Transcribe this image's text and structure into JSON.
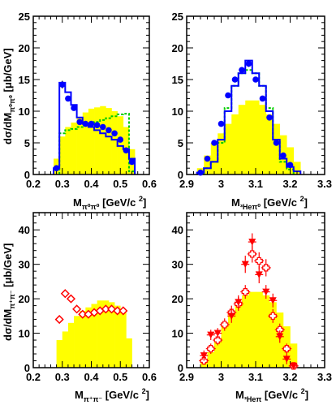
{
  "chart_data": [
    {
      "id": "tl",
      "type": "bar",
      "ylabel": "dσ/dM_{π⁰π⁰} [μb/GeV]",
      "xlabel": "M_{π⁰π⁰} [GeV/c²]",
      "xlim": [
        0.2,
        0.6
      ],
      "ylim": [
        0,
        25
      ],
      "xticks": [
        0.2,
        0.3,
        0.4,
        0.5,
        0.6
      ],
      "yticks": [
        0,
        5,
        10,
        15,
        20,
        25
      ],
      "yellow_hist": {
        "edges": [
          0.27,
          0.29,
          0.31,
          0.33,
          0.35,
          0.37,
          0.39,
          0.41,
          0.43,
          0.45,
          0.47,
          0.49,
          0.51,
          0.53,
          0.55
        ],
        "values": [
          2.5,
          6.0,
          7.5,
          8.2,
          9.0,
          9.8,
          10.4,
          10.6,
          10.8,
          10.5,
          10.0,
          9.2,
          7.5,
          4.0
        ]
      },
      "blue_hist": {
        "edges": [
          0.27,
          0.29,
          0.31,
          0.33,
          0.35,
          0.37,
          0.39,
          0.41,
          0.43,
          0.45,
          0.47,
          0.49,
          0.51,
          0.53,
          0.55
        ],
        "values": [
          1.0,
          14.5,
          13.0,
          11.0,
          9.0,
          8.0,
          7.5,
          7.0,
          6.5,
          6.0,
          5.5,
          4.5,
          4.0,
          2.5
        ]
      },
      "green_hist": {
        "edges": [
          0.29,
          0.31,
          0.33,
          0.35,
          0.37,
          0.39,
          0.41,
          0.43,
          0.45,
          0.47,
          0.49,
          0.51,
          0.53,
          0.55
        ],
        "values": [
          6.5,
          7.0,
          7.2,
          7.5,
          7.8,
          8.0,
          8.3,
          8.6,
          8.9,
          9.2,
          9.5,
          9.6,
          0.5
        ]
      },
      "blue_points": {
        "x": [
          0.28,
          0.3,
          0.32,
          0.34,
          0.36,
          0.38,
          0.4,
          0.42,
          0.44,
          0.46,
          0.48,
          0.5,
          0.52,
          0.54
        ],
        "y": [
          1.0,
          14.2,
          12.0,
          10.5,
          8.3,
          8.0,
          8.0,
          7.8,
          7.5,
          7.0,
          6.5,
          5.5,
          3.8,
          2.0
        ],
        "err": [
          0.4,
          0.6,
          0.4,
          0.3,
          0.3,
          0.3,
          0.3,
          0.3,
          0.3,
          0.3,
          0.3,
          0.3,
          0.3,
          0.3
        ]
      }
    },
    {
      "id": "tr",
      "type": "bar",
      "xlabel": "M_{³Heπ⁰} [GeV/c²]",
      "xlim": [
        2.9,
        3.3
      ],
      "ylim": [
        0,
        25
      ],
      "xticks": [
        2.9,
        3.0,
        3.1,
        3.2,
        3.3
      ],
      "yticks": [
        0,
        5,
        10,
        15,
        20,
        25
      ],
      "yellow_hist": {
        "edges": [
          2.93,
          2.95,
          2.97,
          2.99,
          3.01,
          3.03,
          3.05,
          3.07,
          3.09,
          3.11,
          3.13,
          3.15,
          3.17,
          3.19,
          3.21,
          3.23
        ],
        "values": [
          1.0,
          3.0,
          5.0,
          6.5,
          8.0,
          9.5,
          11.0,
          11.7,
          11.7,
          11.0,
          9.5,
          8.0,
          6.2,
          4.3,
          2.0
        ]
      },
      "blue_hist": {
        "edges": [
          2.93,
          2.95,
          2.97,
          2.99,
          3.01,
          3.03,
          3.05,
          3.07,
          3.09,
          3.11,
          3.13,
          3.15,
          3.17,
          3.19,
          3.21,
          3.23
        ],
        "values": [
          0.3,
          1.0,
          2.0,
          5.5,
          10.0,
          14.0,
          16.0,
          18.0,
          16.0,
          14.0,
          10.0,
          5.5,
          2.5,
          1.2,
          0.5
        ]
      },
      "green_hist": {
        "edges": [
          2.95,
          2.97,
          2.99,
          3.01,
          3.03,
          3.05,
          3.07,
          3.09,
          3.11,
          3.13,
          3.15,
          3.17,
          3.19,
          3.21
        ],
        "values": [
          1.0,
          2.0,
          5.0,
          10.5,
          14.0,
          16.0,
          16.5,
          16.0,
          14.0,
          10.5,
          5.5,
          2.0,
          0.8
        ]
      },
      "blue_points": {
        "x": [
          2.94,
          2.96,
          2.98,
          3.0,
          3.02,
          3.04,
          3.06,
          3.08,
          3.1,
          3.12,
          3.14,
          3.16,
          3.18,
          3.2
        ],
        "y": [
          0.3,
          2.5,
          5.0,
          8.0,
          12.5,
          15.0,
          16.5,
          17.5,
          15.0,
          12.0,
          9.0,
          5.0,
          3.0,
          1.5
        ],
        "err": [
          0.2,
          0.3,
          0.3,
          0.4,
          0.4,
          0.4,
          0.4,
          0.5,
          0.4,
          0.4,
          0.4,
          0.3,
          0.3,
          0.2
        ]
      }
    },
    {
      "id": "bl",
      "type": "bar",
      "ylabel": "dσ/dM_{π⁺π⁻} [μb/GeV]",
      "xlabel": "M_{π⁺π⁻} [GeV/c²]",
      "xlim": [
        0.2,
        0.6
      ],
      "ylim": [
        0,
        45
      ],
      "xticks": [
        0.2,
        0.3,
        0.4,
        0.5,
        0.6
      ],
      "yticks": [
        0,
        10,
        20,
        30,
        40
      ],
      "yellow_hist": {
        "edges": [
          0.28,
          0.3,
          0.32,
          0.34,
          0.36,
          0.38,
          0.4,
          0.42,
          0.44,
          0.46,
          0.48,
          0.5,
          0.52,
          0.54
        ],
        "values": [
          8.0,
          10.5,
          13.0,
          15.0,
          16.5,
          17.5,
          18.5,
          19.5,
          19.5,
          19.0,
          18.0,
          16.0,
          8.5
        ]
      },
      "red_points": {
        "x": [
          0.29,
          0.31,
          0.33,
          0.35,
          0.37,
          0.39,
          0.41,
          0.43,
          0.45,
          0.47,
          0.49,
          0.51
        ],
        "y": [
          14.0,
          21.5,
          20.0,
          17.0,
          15.5,
          15.5,
          16.0,
          16.5,
          17.0,
          17.0,
          16.5,
          16.5
        ],
        "err": [
          1.0,
          1.2,
          1.0,
          1.0,
          0.8,
          0.8,
          0.8,
          0.8,
          0.8,
          0.8,
          0.8,
          0.8
        ]
      }
    },
    {
      "id": "br",
      "type": "bar",
      "xlabel": "M_{³Heπ} [GeV/c²]",
      "xlim": [
        2.9,
        3.3
      ],
      "ylim": [
        0,
        45
      ],
      "xticks": [
        2.9,
        3.0,
        3.1,
        3.2,
        3.3
      ],
      "yticks": [
        0,
        10,
        20,
        30,
        40
      ],
      "yellow_hist": {
        "edges": [
          2.94,
          2.96,
          2.98,
          3.0,
          3.02,
          3.04,
          3.06,
          3.08,
          3.1,
          3.12,
          3.14,
          3.16,
          3.18,
          3.2,
          3.22
        ],
        "values": [
          2.0,
          4.5,
          8.0,
          12.0,
          15.5,
          18.5,
          21.0,
          22.0,
          22.0,
          21.0,
          19.0,
          16.0,
          12.0,
          7.0
        ]
      },
      "open_points": {
        "x": [
          2.95,
          2.97,
          2.99,
          3.01,
          3.03,
          3.05,
          3.07,
          3.09,
          3.11,
          3.13,
          3.15,
          3.17,
          3.19,
          3.21
        ],
        "y": [
          2.0,
          5.5,
          8.0,
          12.5,
          16.0,
          18.5,
          22.0,
          33.0,
          31.0,
          29.0,
          15.0,
          11.0,
          5.5,
          0.5
        ],
        "err": [
          1.2,
          1.5,
          1.5,
          1.8,
          2.0,
          2.0,
          2.0,
          2.5,
          2.5,
          2.5,
          2.0,
          1.8,
          1.5,
          1.0
        ]
      },
      "filled_points": {
        "x": [
          2.95,
          2.97,
          2.99,
          3.03,
          3.05,
          3.07,
          3.09,
          3.11,
          3.13,
          3.15,
          3.17,
          3.19,
          3.21
        ],
        "y": [
          3.5,
          9.5,
          10.0,
          15.0,
          19.0,
          30.0,
          36.5,
          27.0,
          22.0,
          19.5,
          9.0,
          2.5,
          0.5
        ],
        "err": [
          1.5,
          1.5,
          1.5,
          2.0,
          2.0,
          2.5,
          2.5,
          2.5,
          2.0,
          2.0,
          1.8,
          1.5,
          1.0
        ]
      }
    }
  ],
  "colors": {
    "yellow": "#ffff00",
    "blue": "#0000ff",
    "green": "#00cc00",
    "red": "#ff0000"
  }
}
